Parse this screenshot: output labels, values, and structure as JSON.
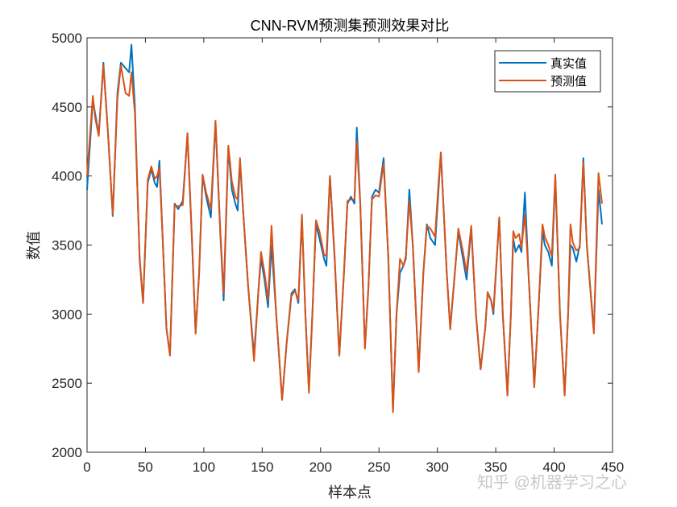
{
  "chart_data": {
    "type": "line",
    "title": "CNN-RVM预测集预测效果对比",
    "xlabel": "样本点",
    "ylabel": "数值",
    "xlim": [
      0,
      450
    ],
    "ylim": [
      2000,
      5000
    ],
    "xticks": [
      0,
      50,
      100,
      150,
      200,
      250,
      300,
      350,
      400,
      450
    ],
    "yticks": [
      2000,
      2500,
      3000,
      3500,
      4000,
      4500,
      5000
    ],
    "grid": false,
    "legend_position": "top-right",
    "x": [
      0,
      5,
      7,
      10,
      14,
      18,
      22,
      26,
      29,
      33,
      36,
      38,
      41,
      45,
      48,
      52,
      55,
      58,
      60,
      62,
      65,
      68,
      71,
      75,
      78,
      82,
      86,
      90,
      93,
      96,
      99,
      102,
      106,
      110,
      114,
      117,
      121,
      124,
      127,
      129,
      131,
      134,
      138,
      143,
      147,
      149,
      152,
      155,
      158,
      162,
      167,
      171,
      175,
      178,
      181,
      184,
      187,
      190,
      193,
      196,
      199,
      203,
      205,
      208,
      212,
      216,
      220,
      223,
      226,
      229,
      231,
      234,
      238,
      241,
      244,
      247,
      250,
      254,
      258,
      262,
      265,
      268,
      271,
      273,
      276,
      279,
      284,
      288,
      291,
      294,
      298,
      301,
      303,
      308,
      311,
      315,
      318,
      322,
      325,
      329,
      333,
      337,
      341,
      343,
      346,
      348,
      353,
      356,
      360,
      363,
      365,
      367,
      370,
      372,
      375,
      378,
      383,
      387,
      390,
      392,
      395,
      398,
      401,
      405,
      409,
      412,
      414,
      416,
      419,
      422,
      425,
      428,
      434,
      438,
      441
    ],
    "series": [
      {
        "name": "真实值",
        "color": "#0072BD",
        "values": [
          3900,
          4550,
          4450,
          4300,
          4820,
          4300,
          3710,
          4600,
          4820,
          4780,
          4750,
          4950,
          4500,
          3400,
          3080,
          3950,
          4050,
          3950,
          3920,
          4110,
          3500,
          2900,
          2700,
          3800,
          3760,
          3820,
          4300,
          3500,
          2860,
          3300,
          4000,
          3850,
          3700,
          4390,
          3600,
          3100,
          4200,
          3900,
          3800,
          3750,
          4100,
          3700,
          3200,
          2700,
          3200,
          3400,
          3250,
          3050,
          3500,
          3000,
          2380,
          2800,
          3150,
          3180,
          3080,
          3700,
          3000,
          2450,
          3000,
          3650,
          3550,
          3400,
          3350,
          4000,
          3400,
          2700,
          3300,
          3800,
          3850,
          3800,
          4350,
          3800,
          2760,
          3200,
          3850,
          3900,
          3880,
          4130,
          3400,
          2300,
          3000,
          3300,
          3350,
          3400,
          3900,
          3500,
          2600,
          3300,
          3650,
          3550,
          3500,
          3900,
          4170,
          3300,
          2900,
          3300,
          3600,
          3400,
          3250,
          3620,
          3000,
          2600,
          2900,
          3150,
          3100,
          3000,
          3700,
          3000,
          2430,
          3000,
          3550,
          3450,
          3500,
          3450,
          3880,
          3300,
          2480,
          3100,
          3600,
          3500,
          3450,
          3350,
          3990,
          3000,
          2420,
          3000,
          3500,
          3480,
          3380,
          3500,
          4130,
          3500,
          2880,
          3900,
          3650
        ]
      },
      {
        "name": "预测值",
        "color": "#D95319",
        "values": [
          4000,
          4580,
          4420,
          4290,
          4800,
          4300,
          3720,
          4560,
          4800,
          4600,
          4580,
          4750,
          4450,
          3420,
          3080,
          3970,
          4070,
          3980,
          4000,
          4060,
          3500,
          2900,
          2700,
          3790,
          3780,
          3790,
          4310,
          3520,
          2860,
          3300,
          4010,
          3880,
          3760,
          4400,
          3620,
          3150,
          4220,
          3960,
          3850,
          3830,
          4130,
          3700,
          3200,
          2660,
          3200,
          3450,
          3300,
          3100,
          3640,
          3000,
          2380,
          2800,
          3130,
          3170,
          3100,
          3720,
          3000,
          2430,
          3000,
          3680,
          3600,
          3430,
          3420,
          4000,
          3420,
          2700,
          3300,
          3820,
          3830,
          3830,
          4250,
          3800,
          2750,
          3200,
          3830,
          3860,
          3850,
          4090,
          3420,
          2290,
          3000,
          3400,
          3350,
          3420,
          3820,
          3500,
          2580,
          3300,
          3640,
          3620,
          3560,
          3950,
          4170,
          3300,
          2890,
          3300,
          3620,
          3450,
          3300,
          3640,
          3000,
          2600,
          2900,
          3160,
          3100,
          3020,
          3700,
          3000,
          2410,
          3000,
          3600,
          3550,
          3580,
          3480,
          3720,
          3300,
          2470,
          3100,
          3650,
          3560,
          3500,
          3420,
          4010,
          3000,
          2410,
          3000,
          3650,
          3520,
          3460,
          3480,
          4100,
          3500,
          2860,
          4020,
          3800
        ]
      }
    ]
  },
  "watermark": "知乎 @机器学习之心"
}
